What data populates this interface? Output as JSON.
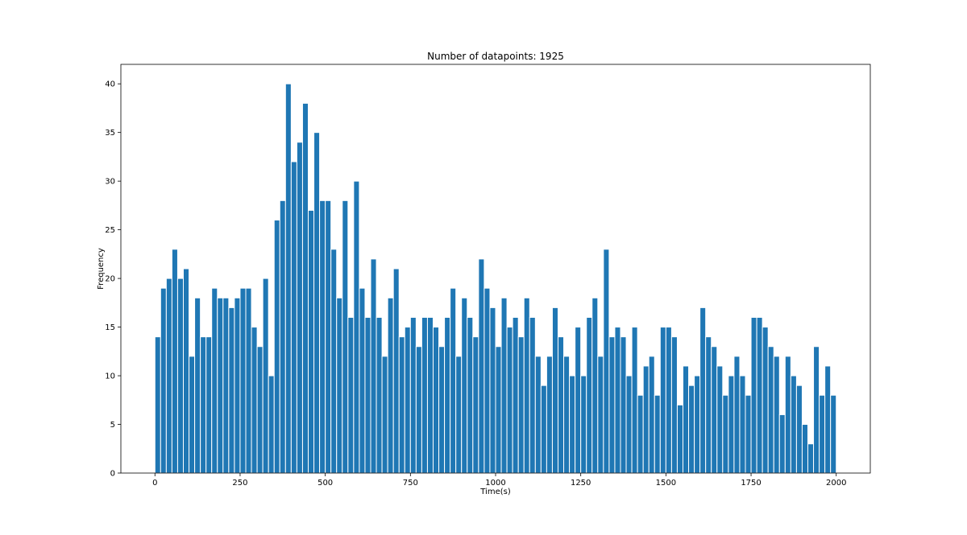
{
  "chart_data": {
    "type": "bar",
    "title": "Number of datapoints: 1925",
    "xlabel": "Time(s)",
    "ylabel": "Frequency",
    "xlim": [
      -100,
      2100
    ],
    "ylim": [
      0,
      42
    ],
    "xticks": [
      0,
      250,
      500,
      750,
      1000,
      1250,
      1500,
      1750,
      2000
    ],
    "yticks": [
      0,
      5,
      10,
      15,
      20,
      25,
      30,
      35,
      40
    ],
    "grid": false,
    "bar_color": "#1f77b4",
    "bar_edge_color": "#ffffff",
    "bin_width": 16.6667,
    "bin_start": 0,
    "values": [
      14,
      19,
      20,
      23,
      20,
      21,
      12,
      18,
      14,
      14,
      19,
      18,
      18,
      17,
      18,
      19,
      19,
      15,
      13,
      20,
      10,
      26,
      28,
      40,
      32,
      34,
      38,
      27,
      35,
      28,
      28,
      23,
      18,
      28,
      16,
      30,
      19,
      16,
      22,
      16,
      12,
      18,
      21,
      14,
      15,
      16,
      13,
      16,
      16,
      15,
      13,
      16,
      19,
      12,
      18,
      16,
      14,
      22,
      19,
      17,
      13,
      18,
      15,
      16,
      14,
      18,
      16,
      12,
      9,
      12,
      17,
      14,
      12,
      10,
      15,
      10,
      16,
      18,
      12,
      23,
      14,
      15,
      14,
      10,
      15,
      8,
      11,
      12,
      8,
      15,
      15,
      14,
      7,
      11,
      9,
      10,
      17,
      14,
      13,
      11,
      8,
      10,
      12,
      10,
      8,
      16,
      16,
      15,
      13,
      12,
      6,
      12,
      10,
      9,
      5,
      3,
      13,
      8,
      11,
      8
    ]
  }
}
